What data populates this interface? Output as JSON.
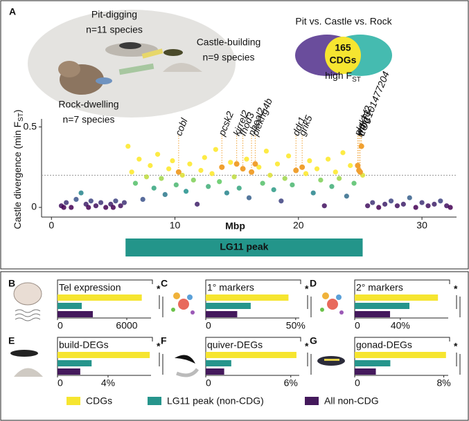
{
  "chart_data": [
    {
      "type": "scatter",
      "label": "A",
      "groups": [
        {
          "name": "Pit-digging",
          "n": "n=11 species"
        },
        {
          "name": "Castle-building",
          "n": "n=9 species"
        },
        {
          "name": "Rock-dwelling",
          "n": "n=7 species"
        }
      ],
      "venn": {
        "title": "Pit vs. Castle vs. Rock",
        "count": "165",
        "unit": "CDGs",
        "caption": "high F",
        "caption_sub": "ST"
      },
      "ylabel": [
        "Castle divergence (min F",
        "ST",
        ")"
      ],
      "xlabel": "Mbp",
      "xlim": [
        -0.8,
        32.8
      ],
      "ylim": [
        -0.06,
        0.55
      ],
      "xticks": [
        0,
        10,
        20,
        30
      ],
      "yticks": [
        0,
        0.5
      ],
      "threshold": 0.2,
      "peak": {
        "label": "LG11 peak",
        "start": 6,
        "end": 25.2,
        "color": "#23958a"
      },
      "x": [
        0.8,
        1.2,
        1.6,
        2.0,
        2.4,
        2.8,
        3.2,
        3.6,
        4.0,
        4.4,
        4.8,
        5.2,
        5.6,
        5.9,
        1.0,
        3.0,
        5.0,
        6.2,
        6.5,
        6.8,
        7.1,
        7.4,
        7.7,
        8.0,
        8.3,
        8.6,
        8.9,
        9.2,
        9.5,
        9.8,
        10.1,
        10.6,
        10.9,
        11.2,
        11.5,
        11.8,
        12.1,
        12.4,
        12.7,
        13.0,
        13.3,
        13.6,
        14.2,
        14.5,
        14.8,
        15.2,
        15.8,
        16.0,
        16.8,
        17.1,
        17.4,
        17.7,
        18.0,
        18.3,
        18.6,
        18.9,
        19.2,
        19.5,
        20.6,
        20.9,
        21.2,
        21.5,
        21.8,
        22.1,
        22.4,
        22.7,
        23.0,
        23.3,
        23.6,
        23.9,
        24.2,
        24.5,
        25.2,
        25.6,
        26.0,
        26.5,
        27.0,
        27.5,
        28.0,
        28.5,
        29.0,
        29.5,
        30.0,
        30.5,
        31.0,
        31.5,
        32.0,
        32.3
      ],
      "y": [
        0.01,
        0.03,
        0.0,
        0.05,
        0.09,
        0.02,
        0.04,
        0.01,
        0.03,
        0.0,
        0.02,
        0.04,
        0.01,
        0.03,
        0.0,
        0.0,
        0.0,
        0.38,
        0.22,
        0.15,
        0.3,
        0.05,
        0.19,
        0.26,
        0.12,
        0.33,
        0.18,
        0.08,
        0.24,
        0.29,
        0.14,
        0.2,
        0.1,
        0.27,
        0.17,
        0.02,
        0.23,
        0.31,
        0.13,
        0.21,
        0.36,
        0.16,
        0.09,
        0.28,
        0.19,
        0.12,
        0.3,
        0.06,
        0.25,
        0.15,
        0.35,
        0.2,
        0.11,
        0.27,
        0.04,
        0.18,
        0.32,
        0.14,
        0.21,
        0.29,
        0.09,
        0.24,
        0.17,
        0.01,
        0.3,
        0.13,
        0.22,
        0.18,
        0.34,
        0.07,
        0.26,
        0.15,
        0.2,
        0.01,
        0.03,
        0.0,
        0.02,
        0.04,
        0.01,
        0.02,
        0.06,
        0.0,
        0.03,
        0.01,
        0.02,
        0.04,
        0.01,
        0.0
      ],
      "genes": {
        "color": "#f0a030",
        "names": [
          "cobl",
          "pcsk2",
          "kirrel2",
          "fhod3",
          "plekhg4b",
          "nbeal2",
          "ddr1",
          "grik5",
          "plekhf2",
          "wdr73",
          "rhbg",
          "LOC101477204"
        ],
        "x": [
          10.3,
          13.8,
          15.0,
          15.5,
          16.5,
          16.2,
          19.8,
          20.3,
          24.8,
          24.9,
          25.0,
          25.1
        ],
        "y": [
          0.22,
          0.25,
          0.27,
          0.24,
          0.27,
          0.22,
          0.23,
          0.25,
          0.26,
          0.23,
          0.22,
          0.38
        ]
      }
    },
    {
      "type": "bar",
      "label": "B",
      "title": "Tel expression",
      "values": [
        7300,
        2100,
        3060
      ],
      "xlim": [
        0,
        8100
      ],
      "xticks": [
        0,
        6000
      ],
      "sig": "*"
    },
    {
      "type": "bar",
      "label": "C",
      "title": "1° markers",
      "values": [
        46,
        25,
        17.5
      ],
      "xlim": [
        0,
        52
      ],
      "xticks": [
        0,
        {
          "value": 50,
          "label": "50%"
        }
      ],
      "sig": "*"
    },
    {
      "type": "bar",
      "label": "D",
      "title": "2° markers",
      "values": [
        73,
        48,
        31
      ],
      "xlim": [
        0,
        82
      ],
      "xticks": [
        0,
        {
          "value": 40,
          "label": "40%"
        }
      ],
      "sig": "*"
    },
    {
      "type": "bar",
      "label": "E",
      "title": "build-DEGs",
      "values": [
        7.3,
        2.7,
        1.8
      ],
      "xlim": [
        0,
        7.4
      ],
      "xticks": [
        0,
        {
          "value": 4,
          "label": "4%"
        }
      ],
      "sig": "*"
    },
    {
      "type": "bar",
      "label": "F",
      "title": "quiver-DEGs",
      "values": [
        6.4,
        1.8,
        1.3
      ],
      "xlim": [
        0,
        6.6
      ],
      "xticks": [
        0,
        {
          "value": 6,
          "label": "6%"
        }
      ],
      "sig": "*"
    },
    {
      "type": "bar",
      "label": "G",
      "title": "gonad-DEGs",
      "values": [
        8.2,
        3.2,
        1.9
      ],
      "xlim": [
        0,
        8.4
      ],
      "xticks": [
        0,
        {
          "value": 8,
          "label": "8%"
        }
      ],
      "sig": "*"
    }
  ],
  "legend": [
    {
      "name": "CDGs",
      "color": "#f6e530"
    },
    {
      "name": "LG11 peak (non-CDG)",
      "color": "#26958c"
    },
    {
      "name": "All non-CDG",
      "color": "#44195c"
    }
  ]
}
